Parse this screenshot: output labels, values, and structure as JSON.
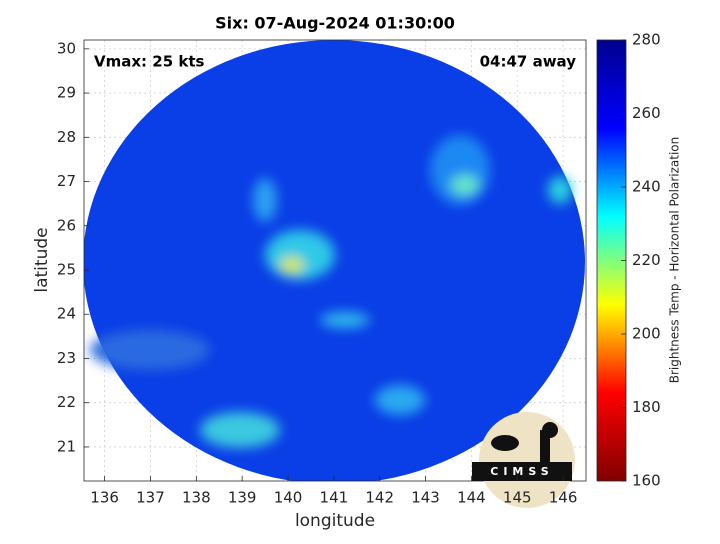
{
  "chart_data": {
    "type": "image",
    "title": "Six: 07-Aug-2024 01:30:00",
    "annotations": [
      "Vmax: 25 kts",
      "04:47 away"
    ],
    "xlabel": "longitude",
    "ylabel": "latitude",
    "xlim": [
      135.55,
      146.5
    ],
    "xticks": [
      136,
      137,
      138,
      139,
      140,
      141,
      142,
      143,
      144,
      145,
      146
    ],
    "ylim": [
      20.23,
      30.2
    ],
    "yticks": [
      21,
      22,
      23,
      24,
      25,
      26,
      27,
      28,
      29,
      30
    ],
    "grid": true,
    "colorbar": {
      "label": "Brightness Temp - Horizontal Polarization",
      "lim": [
        160,
        280
      ],
      "ticks": [
        160,
        180,
        200,
        220,
        240,
        260,
        280
      ],
      "colormap": [
        "#800000",
        "#ff0000",
        "#ffff00",
        "#00ffff",
        "#0000ff",
        "#00008f"
      ]
    },
    "logo_text": "CIMSS"
  }
}
